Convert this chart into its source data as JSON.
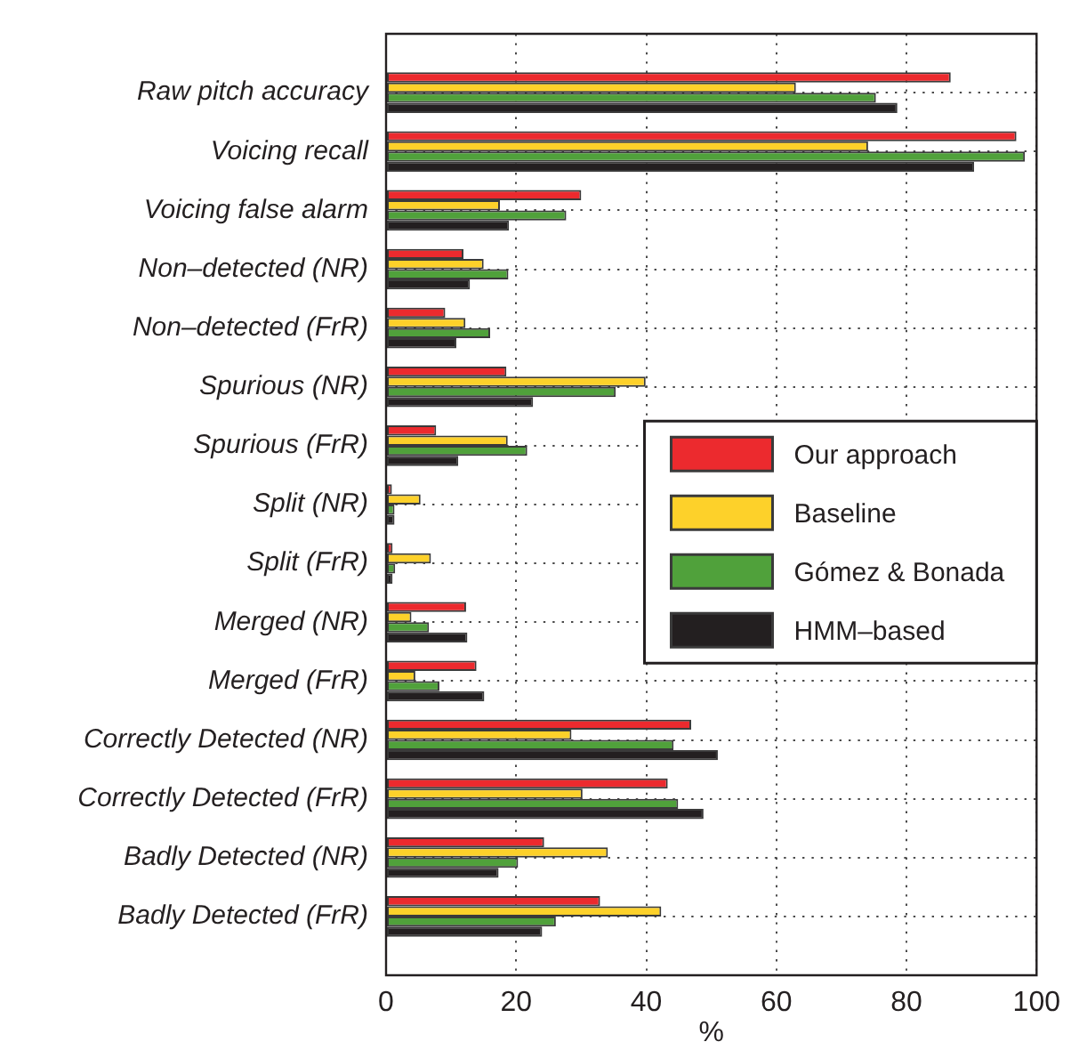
{
  "chart_data": {
    "type": "bar",
    "orientation": "horizontal",
    "xlabel": "%",
    "categories": [
      "Raw pitch accuracy",
      "Voicing recall",
      "Voicing false alarm",
      "Non–detected (NR)",
      "Non–detected (FrR)",
      "Spurious (NR)",
      "Spurious (FrR)",
      "Split (NR)",
      "Split (FrR)",
      "Merged (NR)",
      "Merged (FrR)",
      "Correctly Detected (NR)",
      "Correctly Detected (FrR)",
      "Badly Detected (NR)",
      "Badly Detected (FrR)"
    ],
    "series": [
      {
        "name": "Our approach",
        "color": "#ec2a2e",
        "values": [
          86.8,
          96.9,
          30.0,
          11.9,
          9.1,
          18.5,
          7.7,
          0.9,
          1.0,
          12.3,
          13.9,
          46.9,
          43.3,
          24.3,
          32.9
        ]
      },
      {
        "name": "Baseline",
        "color": "#fdd12a",
        "values": [
          63.0,
          74.1,
          17.5,
          15.0,
          12.2,
          39.9,
          18.7,
          5.3,
          6.9,
          3.9,
          4.5,
          28.5,
          30.2,
          34.1,
          42.3
        ]
      },
      {
        "name": "Gómez & Bonada",
        "color": "#50a13b",
        "values": [
          75.3,
          98.2,
          27.7,
          18.8,
          16.0,
          35.3,
          21.7,
          1.3,
          1.4,
          6.6,
          8.2,
          44.2,
          44.9,
          20.3,
          26.1
        ]
      },
      {
        "name": "HMM–based",
        "color": "#231f20",
        "values": [
          78.6,
          90.4,
          18.9,
          12.9,
          10.8,
          22.6,
          11.1,
          1.3,
          1.0,
          12.5,
          15.1,
          51.0,
          48.8,
          17.3,
          24.0
        ]
      }
    ],
    "xlim": [
      0,
      100
    ],
    "xticks": [
      0,
      20,
      40,
      60,
      80,
      100
    ],
    "grid": true,
    "legend": "right"
  }
}
